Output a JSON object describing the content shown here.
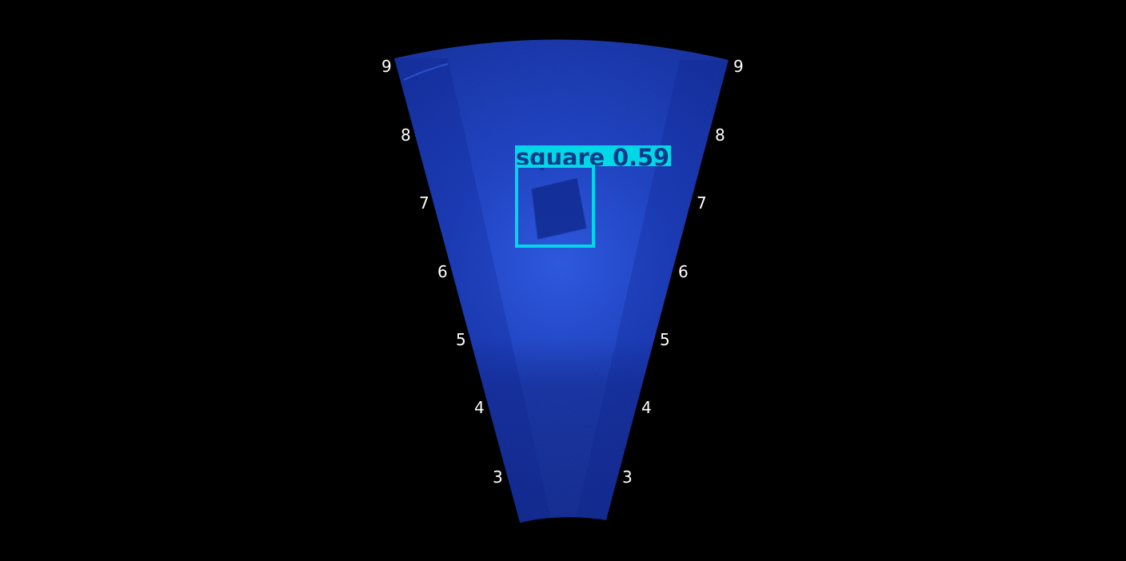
{
  "sonar": {
    "colors": {
      "background": "#000000",
      "fan_inner": "#1f48d8",
      "fan_mid": "#1636b8",
      "fan_outer": "#0f2a9a",
      "bottom_dark": "#0d237f",
      "range_label": "#ffffff",
      "detection_box": "#00d8e8",
      "detection_label_bg": "#00d8e8",
      "detection_label_text": "#0b3a8a"
    },
    "range_labels": {
      "left": [
        "3",
        "4",
        "5",
        "6",
        "7",
        "8",
        "9"
      ],
      "right": [
        "3",
        "4",
        "5",
        "6",
        "7",
        "8",
        "9"
      ]
    },
    "detection": {
      "class_name": "square",
      "confidence": "0.59",
      "label": "square 0.59"
    }
  }
}
